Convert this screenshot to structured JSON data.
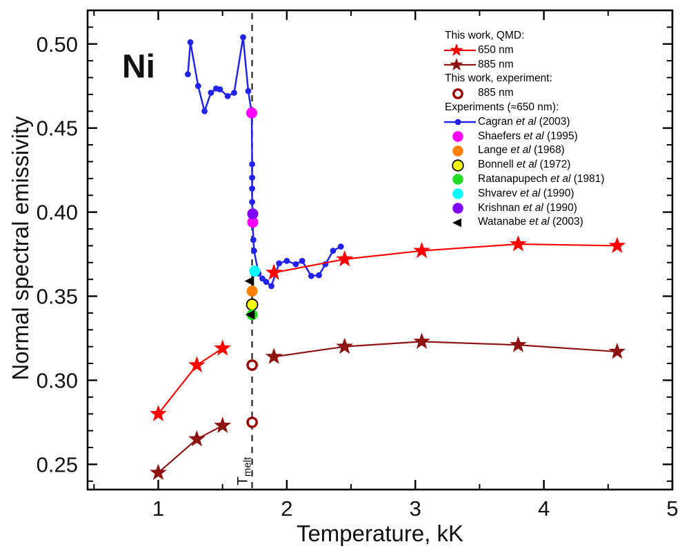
{
  "chart_data": {
    "type": "line",
    "title_annotation": "Ni",
    "xlabel": "Temperature, kK",
    "ylabel": "Normal spectral emissivity",
    "xlim": [
      0.45,
      5.0
    ],
    "ylim": [
      0.235,
      0.52
    ],
    "x_major_ticks": [
      1,
      2,
      3,
      4,
      5
    ],
    "x_minor_step": 0.5,
    "y_major_ticks": [
      0.25,
      0.3,
      0.35,
      0.4,
      0.45,
      0.5
    ],
    "y_minor_step": 0.01,
    "grid": false,
    "legend_position": "top-right-inside",
    "melt_line": {
      "x": 1.73,
      "label_main": "T",
      "label_sub": "melt",
      "color": "#333333"
    },
    "colors": {
      "qmd650": "#ff0000",
      "qmd885": "#8e1313",
      "exp885_ring": "#9b0000",
      "cagran": "#2222ee",
      "shaefers": "#ff00ff",
      "lange": "#ff7f00",
      "bonnell": "#ffff00",
      "ratanapupech": "#22dd22",
      "shvarev": "#00ffff",
      "krishnan": "#8000ff",
      "watanabe": "#000000",
      "frame": "#000000"
    },
    "series": [
      {
        "id": "cagran",
        "name": "Cagran et al (2003)",
        "marker": "dot",
        "color": "#2222ee",
        "line": true,
        "points": [
          [
            1.23,
            0.482
          ],
          [
            1.25,
            0.501
          ],
          [
            1.31,
            0.475
          ],
          [
            1.36,
            0.46
          ],
          [
            1.41,
            0.471
          ],
          [
            1.45,
            0.4735
          ],
          [
            1.48,
            0.473
          ],
          [
            1.54,
            0.469
          ],
          [
            1.59,
            0.471
          ],
          [
            1.66,
            0.504
          ],
          [
            1.7,
            0.472
          ],
          [
            1.727,
            0.459
          ],
          [
            1.73,
            0.4285
          ],
          [
            1.73,
            0.4205
          ],
          [
            1.73,
            0.414
          ],
          [
            1.73,
            0.406
          ],
          [
            1.735,
            0.399
          ],
          [
            1.735,
            0.3935
          ],
          [
            1.74,
            0.3835
          ],
          [
            1.745,
            0.377
          ],
          [
            1.78,
            0.3635
          ],
          [
            1.81,
            0.3605
          ],
          [
            1.84,
            0.3585
          ],
          [
            1.88,
            0.356
          ],
          [
            1.94,
            0.3695
          ],
          [
            2.0,
            0.371
          ],
          [
            2.07,
            0.369
          ],
          [
            2.12,
            0.371
          ],
          [
            2.19,
            0.362
          ],
          [
            2.25,
            0.3625
          ],
          [
            2.3,
            0.369
          ],
          [
            2.36,
            0.377
          ],
          [
            2.42,
            0.3795
          ]
        ]
      },
      {
        "id": "qmd-650-solid",
        "name": "This work QMD 650 nm (solid phase)",
        "marker": "star",
        "color": "#ff0000",
        "line": true,
        "points": [
          [
            1.0,
            0.28
          ],
          [
            1.3,
            0.309
          ],
          [
            1.5,
            0.319
          ]
        ]
      },
      {
        "id": "qmd-650-liquid",
        "name": "This work QMD 650 nm (liquid phase)",
        "marker": "star",
        "color": "#ff0000",
        "line": true,
        "points": [
          [
            1.9,
            0.364
          ],
          [
            2.45,
            0.372
          ],
          [
            3.05,
            0.377
          ],
          [
            3.8,
            0.381
          ],
          [
            4.57,
            0.38
          ]
        ]
      },
      {
        "id": "qmd-885-solid",
        "name": "This work QMD 885 nm (solid phase)",
        "marker": "star",
        "color": "#8e1313",
        "line": true,
        "points": [
          [
            1.0,
            0.245
          ],
          [
            1.3,
            0.265
          ],
          [
            1.5,
            0.273
          ]
        ]
      },
      {
        "id": "qmd-885-liquid",
        "name": "This work QMD 885 nm (liquid phase)",
        "marker": "star",
        "color": "#8e1313",
        "line": true,
        "points": [
          [
            1.9,
            0.314
          ],
          [
            2.45,
            0.32
          ],
          [
            3.05,
            0.323
          ],
          [
            3.8,
            0.321
          ],
          [
            4.57,
            0.317
          ]
        ]
      },
      {
        "id": "shaefers",
        "name": "Shaefers et al (1995)",
        "marker": "circle",
        "color": "#ff00ff",
        "line": false,
        "points": [
          [
            1.727,
            0.459
          ],
          [
            1.735,
            0.394
          ]
        ]
      },
      {
        "id": "krishnan",
        "name": "Krishnan et al (1990)",
        "marker": "circle",
        "color": "#8000ff",
        "line": false,
        "points": [
          [
            1.735,
            0.399
          ]
        ]
      },
      {
        "id": "shvarev",
        "name": "Shvarev et al (1990)",
        "marker": "circle",
        "color": "#00ffff",
        "line": false,
        "points": [
          [
            1.75,
            0.365
          ]
        ]
      },
      {
        "id": "lange",
        "name": "Lange et al (1968)",
        "marker": "circle",
        "color": "#ff7f00",
        "line": false,
        "points": [
          [
            1.73,
            0.353
          ]
        ]
      },
      {
        "id": "bonnell",
        "name": "Bonnell et al (1972)",
        "marker": "circle-outlined",
        "color": "#ffff00",
        "line": false,
        "points": [
          [
            1.73,
            0.345
          ]
        ]
      },
      {
        "id": "ratanapupech",
        "name": "Ratanapupech et al (1981)",
        "marker": "circle",
        "color": "#22dd22",
        "line": false,
        "points": [
          [
            1.73,
            0.339
          ]
        ]
      },
      {
        "id": "watanabe",
        "name": "Watanabe et al (2003)",
        "marker": "triangle-left",
        "color": "#000000",
        "line": false,
        "points": [
          [
            1.715,
            0.359
          ],
          [
            1.72,
            0.339
          ]
        ]
      },
      {
        "id": "exp-885",
        "name": "This work experiment 885 nm",
        "marker": "open-circle",
        "color": "#9b0000",
        "line": false,
        "points": [
          [
            1.73,
            0.309
          ],
          [
            1.73,
            0.275
          ]
        ]
      }
    ]
  },
  "legend": {
    "items": [
      {
        "type": "header",
        "text": "This work, QMD:"
      },
      {
        "type": "item",
        "marker": "star-line",
        "color": "#ff0000",
        "text_pre": "650 nm",
        "text_italic": "",
        "text_post": ""
      },
      {
        "type": "item",
        "marker": "star-line",
        "color": "#8e1313",
        "text_pre": "885 nm",
        "text_italic": "",
        "text_post": ""
      },
      {
        "type": "header",
        "text": "This work, experiment:"
      },
      {
        "type": "item",
        "marker": "open-circle",
        "color": "#9b0000",
        "text_pre": "885 nm",
        "text_italic": "",
        "text_post": ""
      },
      {
        "type": "header",
        "text": "Experiments (≈650 nm):"
      },
      {
        "type": "item",
        "marker": "line-dot",
        "color": "#2222ee",
        "text_pre": "Cagran ",
        "text_italic": "et al",
        "text_post": " (2003)"
      },
      {
        "type": "item",
        "marker": "circle",
        "color": "#ff00ff",
        "text_pre": "Shaefers ",
        "text_italic": "et al",
        "text_post": " (1995)"
      },
      {
        "type": "item",
        "marker": "circle",
        "color": "#ff7f00",
        "text_pre": "Lange ",
        "text_italic": "et al",
        "text_post": " (1968)"
      },
      {
        "type": "item",
        "marker": "circle-outlined",
        "color": "#ffff00",
        "text_pre": "Bonnell ",
        "text_italic": "et al",
        "text_post": " (1972)"
      },
      {
        "type": "item",
        "marker": "circle",
        "color": "#22dd22",
        "text_pre": "Ratanapupech ",
        "text_italic": "et al",
        "text_post": " (1981)"
      },
      {
        "type": "item",
        "marker": "circle",
        "color": "#00ffff",
        "text_pre": "Shvarev ",
        "text_italic": "et al",
        "text_post": " (1990)"
      },
      {
        "type": "item",
        "marker": "circle",
        "color": "#8000ff",
        "text_pre": "Krishnan ",
        "text_italic": "et al",
        "text_post": " (1990)"
      },
      {
        "type": "item",
        "marker": "triangle-left",
        "color": "#000000",
        "text_pre": "Watanabe ",
        "text_italic": "et al",
        "text_post": " (2003)"
      }
    ]
  }
}
